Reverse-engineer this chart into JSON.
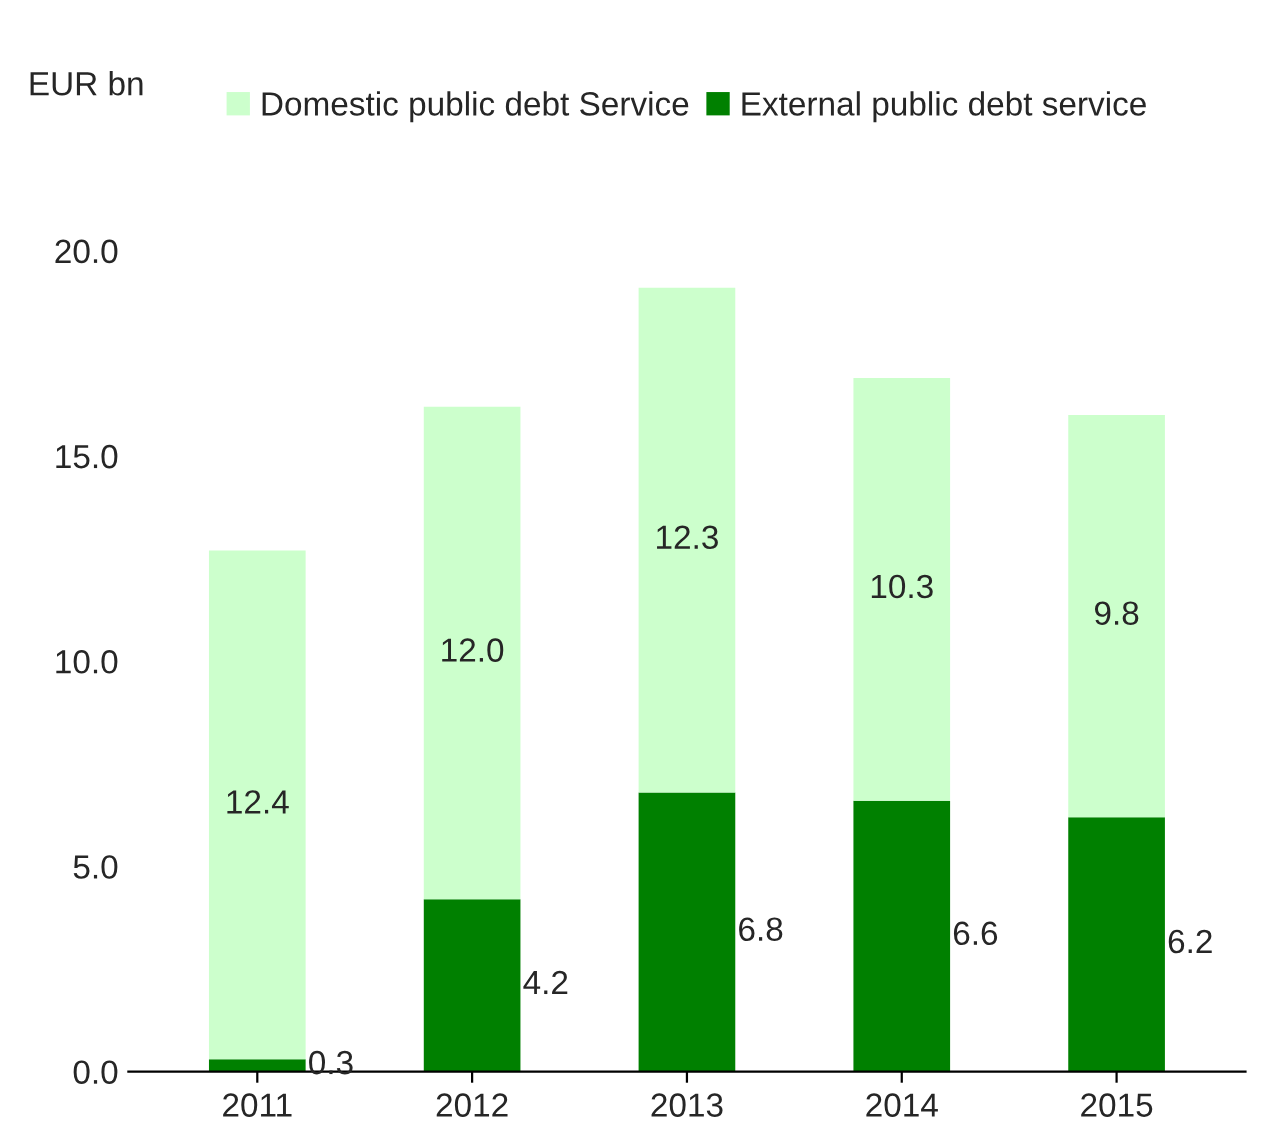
{
  "chart_data": {
    "type": "bar",
    "ylabel": "EUR bn",
    "categories": [
      "2011",
      "2012",
      "2013",
      "2014",
      "2015"
    ],
    "stacked": true,
    "legend": "top",
    "grid": false,
    "ylim": [
      0,
      20
    ],
    "yticks": [
      {
        "value": 0,
        "label": "0.0"
      },
      {
        "value": 5,
        "label": "5.0"
      },
      {
        "value": 10,
        "label": "10.0"
      },
      {
        "value": 15,
        "label": "15.0"
      },
      {
        "value": 20,
        "label": "20.0"
      }
    ],
    "series": [
      {
        "name": "External public debt service",
        "color": "#008000",
        "values": [
          0.3,
          4.2,
          6.8,
          6.6,
          6.2
        ],
        "value_labels": [
          "0.3",
          "4.2",
          "6.8",
          "6.6",
          "6.2"
        ]
      },
      {
        "name": "Domestic public debt Service",
        "color": "#ccffcc",
        "values": [
          12.4,
          12.0,
          12.3,
          10.3,
          9.8
        ],
        "value_labels": [
          "12.4",
          "12.0",
          "12.3",
          "10.3",
          "9.8"
        ]
      }
    ]
  }
}
